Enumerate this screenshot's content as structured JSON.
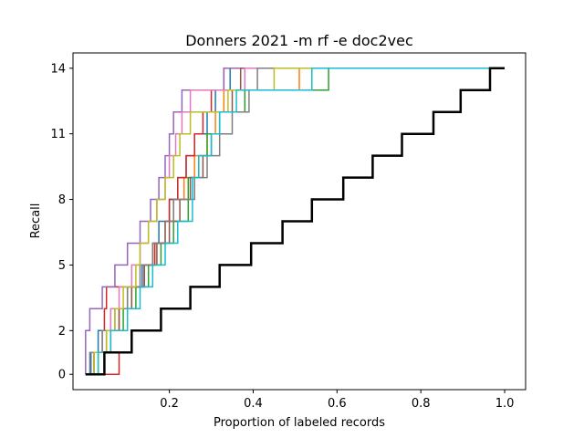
{
  "chart_data": {
    "type": "line",
    "title": "Donners 2021 -m rf -e doc2vec",
    "xlabel": "Proportion of labeled records",
    "ylabel": "Recall",
    "xlim": [
      -0.03,
      1.05
    ],
    "ylim": [
      -0.7,
      14.7
    ],
    "xticks": [
      {
        "value": 0.2,
        "label": "0.2"
      },
      {
        "value": 0.4,
        "label": "0.4"
      },
      {
        "value": 0.6,
        "label": "0.6"
      },
      {
        "value": 0.8,
        "label": "0.8"
      },
      {
        "value": 1.0,
        "label": "1.0"
      }
    ],
    "yticks": [
      {
        "value": 0,
        "label": "0"
      },
      {
        "value": 2,
        "label": "2"
      },
      {
        "value": 5,
        "label": "5"
      },
      {
        "value": 8,
        "label": "8"
      },
      {
        "value": 11,
        "label": "11"
      },
      {
        "value": 14,
        "label": "14"
      }
    ],
    "grid": false,
    "series": [
      {
        "color": "#1f77b4",
        "width": 1.5,
        "x": [
          0.0,
          0.013,
          0.013,
          0.03,
          0.03,
          0.06,
          0.06,
          0.1,
          0.1,
          0.135,
          0.135,
          0.16,
          0.16,
          0.175,
          0.175,
          0.2,
          0.2,
          0.22,
          0.22,
          0.24,
          0.24,
          0.26,
          0.26,
          0.29,
          0.29,
          0.31,
          0.31,
          0.345,
          0.345,
          0.37,
          0.37,
          0.44,
          0.44,
          1.0
        ],
        "y": [
          0,
          0,
          1,
          1,
          2,
          2,
          3,
          3,
          4,
          4,
          5,
          5,
          6,
          6,
          7,
          7,
          8,
          8,
          9,
          9,
          10,
          10,
          11,
          11,
          12,
          12,
          13,
          13,
          14,
          14,
          14,
          14,
          14,
          14
        ]
      },
      {
        "color": "#ff7f0e",
        "width": 1.5,
        "x": [
          0.0,
          0.02,
          0.02,
          0.05,
          0.05,
          0.08,
          0.08,
          0.11,
          0.11,
          0.14,
          0.14,
          0.165,
          0.165,
          0.19,
          0.19,
          0.21,
          0.21,
          0.235,
          0.235,
          0.26,
          0.26,
          0.29,
          0.29,
          0.31,
          0.31,
          0.33,
          0.33,
          0.51,
          0.51,
          1.0
        ],
        "y": [
          0,
          0,
          1,
          1,
          2,
          2,
          3,
          3,
          4,
          4,
          5,
          5,
          6,
          6,
          7,
          7,
          8,
          8,
          9,
          9,
          10,
          10,
          11,
          11,
          12,
          12,
          13,
          13,
          14,
          14
        ]
      },
      {
        "color": "#2ca02c",
        "width": 1.5,
        "x": [
          0.0,
          0.03,
          0.03,
          0.06,
          0.06,
          0.09,
          0.09,
          0.12,
          0.12,
          0.15,
          0.15,
          0.18,
          0.18,
          0.21,
          0.21,
          0.245,
          0.245,
          0.27,
          0.27,
          0.29,
          0.29,
          0.32,
          0.32,
          0.38,
          0.38,
          0.58,
          0.58,
          1.0
        ],
        "y": [
          0,
          0,
          1,
          1,
          2,
          2,
          3,
          3,
          4,
          4,
          5,
          5,
          6,
          6,
          7,
          7,
          9,
          9,
          10,
          10,
          11,
          11,
          12,
          12,
          13,
          13,
          14,
          14
        ]
      },
      {
        "color": "#d62728",
        "width": 1.5,
        "x": [
          0.0,
          0.08,
          0.08,
          0.06,
          0.06,
          0.045,
          0.045,
          0.05,
          0.05,
          0.14,
          0.14,
          0.165,
          0.165,
          0.19,
          0.19,
          0.2,
          0.2,
          0.22,
          0.22,
          0.24,
          0.24,
          0.26,
          0.26,
          0.28,
          0.28,
          0.3,
          0.3,
          0.33,
          0.33,
          1.0
        ],
        "y": [
          0,
          0,
          1,
          1,
          2,
          2,
          3,
          3,
          4,
          4,
          5,
          5,
          6,
          6,
          7,
          7,
          8,
          8,
          9,
          9,
          10,
          10,
          11,
          11,
          12,
          12,
          13,
          13,
          14,
          14
        ]
      },
      {
        "color": "#9467bd",
        "width": 1.5,
        "x": [
          0.0,
          0.0,
          0.01,
          0.01,
          0.04,
          0.04,
          0.07,
          0.07,
          0.1,
          0.1,
          0.13,
          0.13,
          0.155,
          0.155,
          0.175,
          0.175,
          0.19,
          0.19,
          0.2,
          0.2,
          0.21,
          0.21,
          0.23,
          0.23,
          0.33,
          0.33,
          1.0
        ],
        "y": [
          0,
          2,
          2,
          3,
          3,
          4,
          4,
          5,
          5,
          6,
          6,
          7,
          7,
          8,
          8,
          9,
          9,
          10,
          10,
          11,
          11,
          12,
          12,
          13,
          13,
          14,
          14
        ]
      },
      {
        "color": "#8c564b",
        "width": 1.5,
        "x": [
          0.0,
          0.02,
          0.02,
          0.05,
          0.05,
          0.08,
          0.08,
          0.11,
          0.11,
          0.14,
          0.14,
          0.17,
          0.17,
          0.2,
          0.2,
          0.225,
          0.225,
          0.25,
          0.25,
          0.28,
          0.28,
          0.3,
          0.3,
          0.32,
          0.32,
          0.35,
          0.35,
          0.37,
          0.37,
          1.0
        ],
        "y": [
          0,
          0,
          1,
          1,
          2,
          2,
          3,
          3,
          4,
          4,
          5,
          5,
          6,
          6,
          7,
          7,
          8,
          8,
          9,
          9,
          10,
          10,
          11,
          11,
          12,
          12,
          13,
          13,
          14,
          14
        ]
      },
      {
        "color": "#e377c2",
        "width": 1.5,
        "x": [
          0.0,
          0.02,
          0.02,
          0.04,
          0.04,
          0.06,
          0.06,
          0.08,
          0.08,
          0.11,
          0.11,
          0.13,
          0.13,
          0.15,
          0.15,
          0.17,
          0.17,
          0.19,
          0.19,
          0.2,
          0.2,
          0.215,
          0.215,
          0.23,
          0.23,
          0.25,
          0.25,
          0.38,
          0.38,
          1.0
        ],
        "y": [
          0,
          0,
          1,
          1,
          2,
          2,
          3,
          3,
          4,
          4,
          5,
          5,
          6,
          6,
          7,
          7,
          8,
          8,
          9,
          9,
          10,
          10,
          11,
          11,
          12,
          12,
          13,
          13,
          14,
          14
        ]
      },
      {
        "color": "#7f7f7f",
        "width": 1.5,
        "x": [
          0.0,
          0.01,
          0.01,
          0.04,
          0.04,
          0.07,
          0.07,
          0.1,
          0.1,
          0.13,
          0.13,
          0.16,
          0.16,
          0.19,
          0.19,
          0.21,
          0.21,
          0.26,
          0.26,
          0.29,
          0.29,
          0.32,
          0.32,
          0.35,
          0.35,
          0.39,
          0.39,
          0.41,
          0.41,
          1.0
        ],
        "y": [
          0,
          0,
          1,
          1,
          2,
          2,
          3,
          3,
          4,
          4,
          5,
          5,
          6,
          6,
          7,
          7,
          8,
          8,
          9,
          9,
          10,
          10,
          11,
          11,
          12,
          12,
          13,
          13,
          14,
          14
        ]
      },
      {
        "color": "#bcbd22",
        "width": 1.5,
        "x": [
          0.0,
          0.02,
          0.02,
          0.05,
          0.05,
          0.07,
          0.07,
          0.09,
          0.09,
          0.12,
          0.12,
          0.13,
          0.13,
          0.15,
          0.15,
          0.17,
          0.17,
          0.19,
          0.19,
          0.21,
          0.21,
          0.225,
          0.225,
          0.25,
          0.25,
          0.34,
          0.34,
          0.45,
          0.45,
          1.0
        ],
        "y": [
          0,
          0,
          1,
          1,
          2,
          2,
          3,
          3,
          4,
          4,
          5,
          5,
          6,
          6,
          7,
          7,
          8,
          8,
          9,
          9,
          10,
          10,
          11,
          11,
          12,
          12,
          13,
          13,
          14,
          14
        ]
      },
      {
        "color": "#17becf",
        "width": 1.5,
        "x": [
          0.0,
          0.03,
          0.03,
          0.06,
          0.06,
          0.1,
          0.1,
          0.13,
          0.13,
          0.16,
          0.16,
          0.19,
          0.19,
          0.22,
          0.22,
          0.255,
          0.255,
          0.27,
          0.27,
          0.3,
          0.3,
          0.32,
          0.32,
          0.36,
          0.36,
          0.54,
          0.54,
          1.0
        ],
        "y": [
          0,
          0,
          1,
          1,
          2,
          2,
          3,
          3,
          4,
          4,
          5,
          5,
          6,
          6,
          7,
          7,
          9,
          9,
          10,
          10,
          11,
          11,
          12,
          12,
          13,
          13,
          14,
          14
        ]
      },
      {
        "color": "#000000",
        "width": 2.5,
        "x": [
          0.0,
          0.045,
          0.045,
          0.11,
          0.11,
          0.18,
          0.18,
          0.25,
          0.25,
          0.32,
          0.32,
          0.395,
          0.395,
          0.47,
          0.47,
          0.54,
          0.54,
          0.615,
          0.615,
          0.685,
          0.685,
          0.755,
          0.755,
          0.83,
          0.83,
          0.895,
          0.895,
          0.965,
          0.965,
          1.0
        ],
        "y": [
          0,
          0,
          1,
          1,
          2,
          2,
          3,
          3,
          4,
          4,
          5,
          5,
          6,
          6,
          7,
          7,
          8,
          8,
          9,
          9,
          10,
          10,
          11,
          11,
          12,
          12,
          13,
          13,
          14,
          14
        ]
      }
    ]
  }
}
